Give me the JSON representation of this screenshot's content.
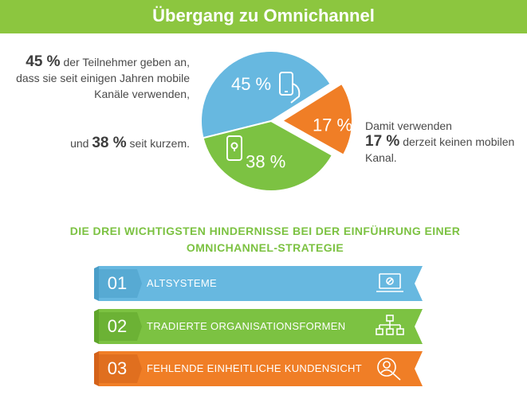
{
  "header": {
    "title": "Übergang zu Omnichannel"
  },
  "chart_data": {
    "type": "pie",
    "slices": [
      {
        "label": "45 %",
        "value": 45,
        "color": "#67b8e0"
      },
      {
        "label": "17 %",
        "value": 17,
        "color": "#f07e26"
      },
      {
        "label": "38 %",
        "value": 38,
        "color": "#7cc242"
      }
    ]
  },
  "annotations": {
    "left_top": {
      "value": "45 %",
      "text": " der Teilnehmer geben an, dass sie seit einigen Jahren mobile Kanäle verwenden,"
    },
    "left_bottom": {
      "prefix": "und ",
      "value": "38 %",
      "text": " seit kurzem."
    },
    "right": {
      "prefix": "Damit verwenden",
      "value": "17 %",
      "text": " derzeit keinen mobilen Kanal."
    }
  },
  "obstacles": {
    "title": "DIE DREI WICHTIGSTEN HINDERNISSE BEI DER EINFÜHRUNG EINER OMNICHANNEL-STRATEGIE",
    "items": [
      {
        "number": "01",
        "label": "ALTSYSTEME",
        "icon": "laptop-icon",
        "color": "#67b8e0"
      },
      {
        "number": "02",
        "label": "TRADIERTE ORGANISATIONSFORMEN",
        "icon": "org-chart-icon",
        "color": "#7cc242"
      },
      {
        "number": "03",
        "label": "FEHLENDE EINHEITLICHE KUNDENSICHT",
        "icon": "customer-search-icon",
        "color": "#f07e26"
      }
    ]
  }
}
